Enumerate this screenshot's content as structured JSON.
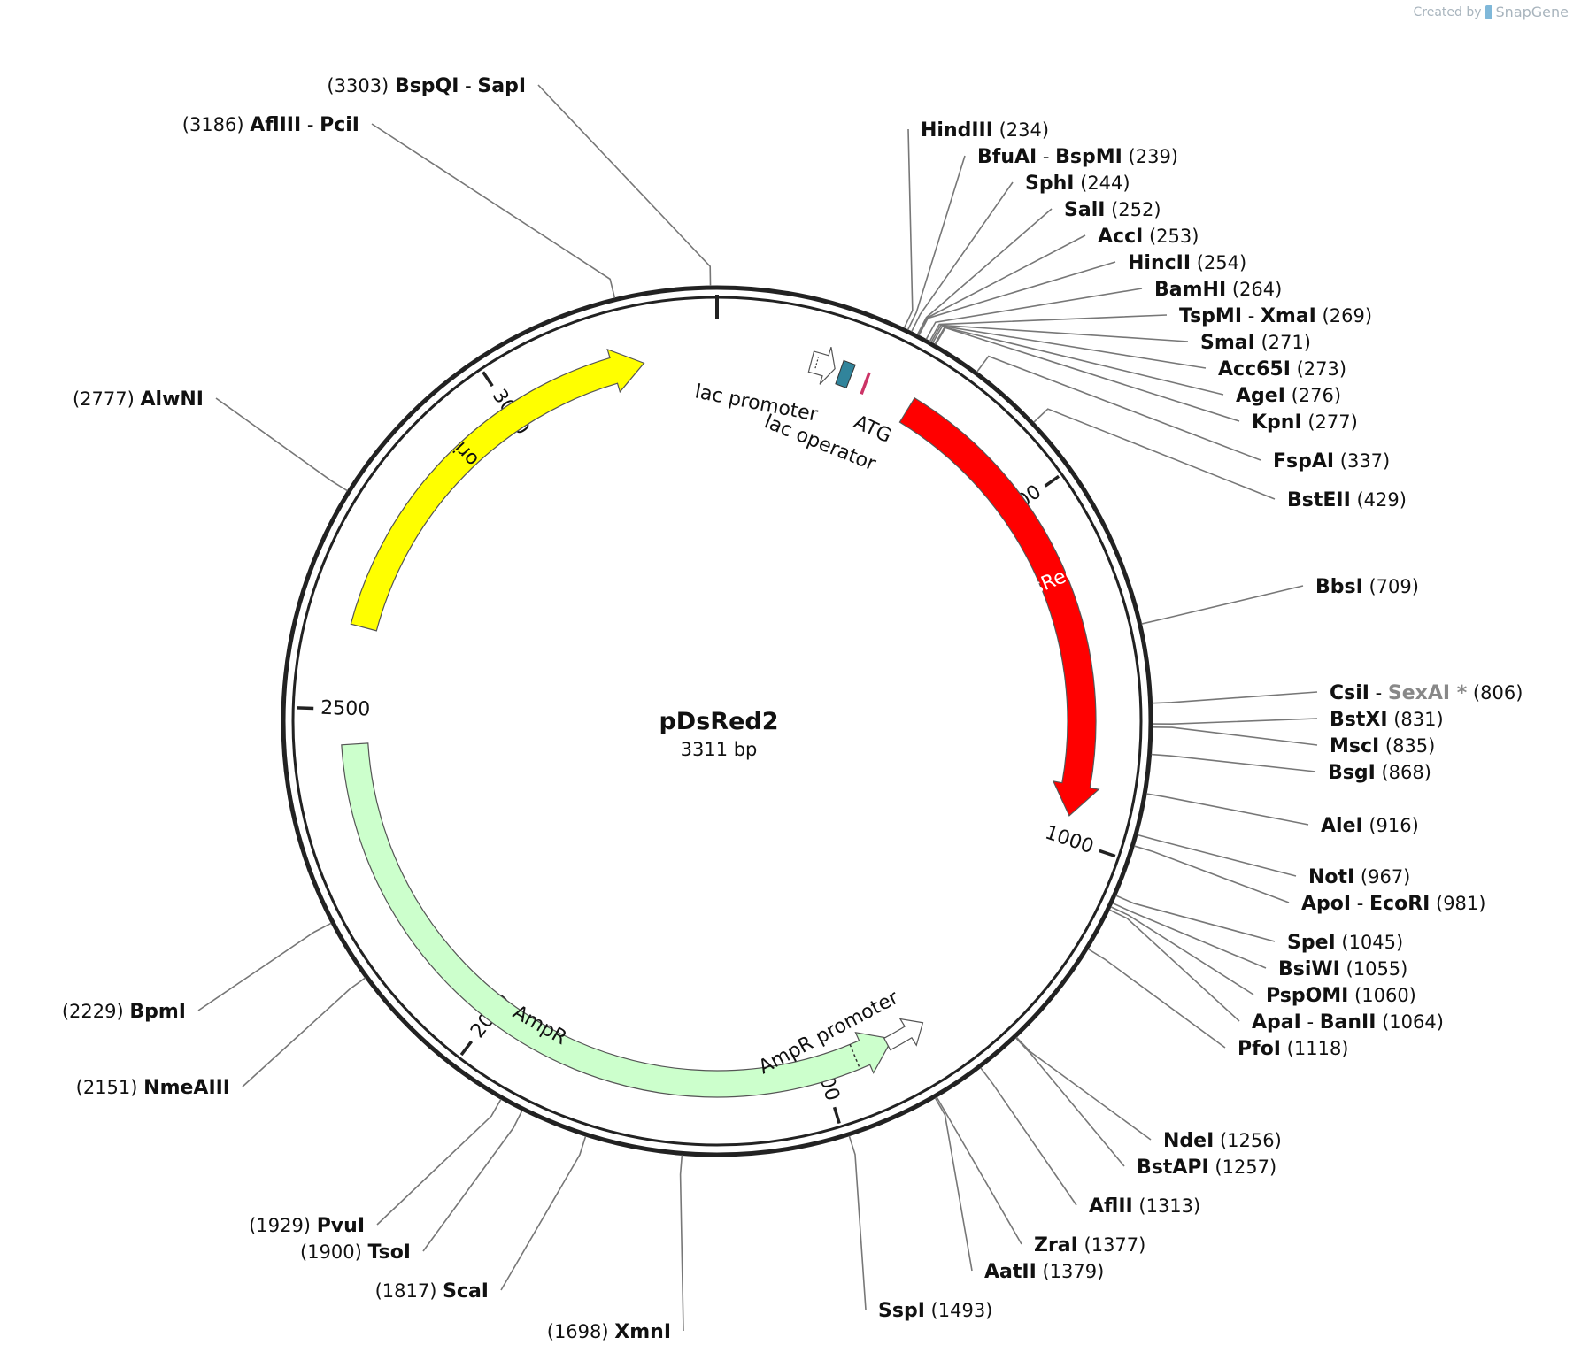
{
  "watermark": {
    "created_by": "Created by",
    "brand": "SnapGene"
  },
  "plasmid": {
    "name": "pDsRed2",
    "length_label": "3311 bp",
    "length_bp": 3311
  },
  "ticks": [
    {
      "bp": 500,
      "label": "500"
    },
    {
      "bp": 1000,
      "label": "1000"
    },
    {
      "bp": 1500,
      "label": "1500"
    },
    {
      "bp": 2000,
      "label": "2000"
    },
    {
      "bp": 2500,
      "label": "2500"
    },
    {
      "bp": 3000,
      "label": "3000"
    }
  ],
  "features": [
    {
      "name": "ori",
      "label": "ori",
      "start": 2620,
      "end": 3205,
      "direction": "forward",
      "color": "#ffff00"
    },
    {
      "name": "dsred2",
      "label": "DsRed2",
      "start": 289,
      "end": 966,
      "direction": "forward",
      "color": "#ff0000",
      "label_color": "#ffffff"
    },
    {
      "name": "ampr",
      "label": "AmpR",
      "start": 1390,
      "end": 2450,
      "direction": "reverse",
      "color": "#ccffcc"
    },
    {
      "name": "ampr-promoter",
      "label": "AmpR promoter",
      "start": 1350,
      "end": 1390,
      "direction": "reverse",
      "color": "#ffffff"
    },
    {
      "name": "lac-promoter",
      "label": "lac promoter",
      "start": 144,
      "end": 168,
      "direction": "forward",
      "color": "#ffffff"
    },
    {
      "name": "lac-operator",
      "label": "lac operator",
      "start": 178,
      "end": 195,
      "direction": "forward",
      "color": "#31849b"
    },
    {
      "name": "atg",
      "label": "ATG",
      "start": 217,
      "end": 220,
      "direction": "forward",
      "color": "#cc3366"
    }
  ],
  "sites": [
    {
      "name": "BspQI",
      "name2": "SapI",
      "pos": "3303",
      "bp": 3303
    },
    {
      "name": "AflIII",
      "name2": "PciI",
      "pos": "3186",
      "bp": 3186
    },
    {
      "name": "AlwNI",
      "pos": "2777",
      "bp": 2777
    },
    {
      "name": "HindIII",
      "pos": "234",
      "bp": 234
    },
    {
      "name": "BfuAI",
      "name2": "BspMI",
      "pos": "239",
      "bp": 239
    },
    {
      "name": "SphI",
      "pos": "244",
      "bp": 244
    },
    {
      "name": "SalI",
      "pos": "252",
      "bp": 252
    },
    {
      "name": "AccI",
      "pos": "253",
      "bp": 253
    },
    {
      "name": "HincII",
      "pos": "254",
      "bp": 254
    },
    {
      "name": "BamHI",
      "pos": "264",
      "bp": 264
    },
    {
      "name": "TspMI",
      "name2": "XmaI",
      "pos": "269",
      "bp": 269
    },
    {
      "name": "SmaI",
      "pos": "271",
      "bp": 271
    },
    {
      "name": "Acc65I",
      "pos": "273",
      "bp": 273
    },
    {
      "name": "AgeI",
      "pos": "276",
      "bp": 276
    },
    {
      "name": "KpnI",
      "pos": "277",
      "bp": 277
    },
    {
      "name": "FspAI",
      "pos": "337",
      "bp": 337
    },
    {
      "name": "BstEII",
      "pos": "429",
      "bp": 429
    },
    {
      "name": "BbsI",
      "pos": "709",
      "bp": 709
    },
    {
      "name": "CsiI",
      "name2": "SexAI *",
      "name2_color": "#888888",
      "pos": "806",
      "bp": 806
    },
    {
      "name": "BstXI",
      "pos": "831",
      "bp": 831
    },
    {
      "name": "MscI",
      "pos": "835",
      "bp": 835
    },
    {
      "name": "BsgI",
      "pos": "868",
      "bp": 868
    },
    {
      "name": "AleI",
      "pos": "916",
      "bp": 916
    },
    {
      "name": "NotI",
      "pos": "967",
      "bp": 967
    },
    {
      "name": "ApoI",
      "name2": "EcoRI",
      "pos": "981",
      "bp": 981
    },
    {
      "name": "SpeI",
      "pos": "1045",
      "bp": 1045
    },
    {
      "name": "BsiWI",
      "pos": "1055",
      "bp": 1055
    },
    {
      "name": "PspOMI",
      "pos": "1060",
      "bp": 1060
    },
    {
      "name": "ApaI",
      "name2": "BanII",
      "pos": "1064",
      "bp": 1064
    },
    {
      "name": "PfoI",
      "pos": "1118",
      "bp": 1118
    },
    {
      "name": "NdeI",
      "pos": "1256",
      "bp": 1256
    },
    {
      "name": "BstAPI",
      "pos": "1257",
      "bp": 1257
    },
    {
      "name": "AflII",
      "pos": "1313",
      "bp": 1313
    },
    {
      "name": "ZraI",
      "pos": "1377",
      "bp": 1377
    },
    {
      "name": "AatII",
      "pos": "1379",
      "bp": 1379
    },
    {
      "name": "SspI",
      "pos": "1493",
      "bp": 1493
    },
    {
      "name": "XmnI",
      "pos": "1698",
      "bp": 1698
    },
    {
      "name": "ScaI",
      "pos": "1817",
      "bp": 1817
    },
    {
      "name": "TsoI",
      "pos": "1900",
      "bp": 1900
    },
    {
      "name": "PvuI",
      "pos": "1929",
      "bp": 1929
    },
    {
      "name": "NmeAIII",
      "pos": "2151",
      "bp": 2151
    },
    {
      "name": "BpmI",
      "pos": "2229",
      "bp": 2229
    }
  ]
}
